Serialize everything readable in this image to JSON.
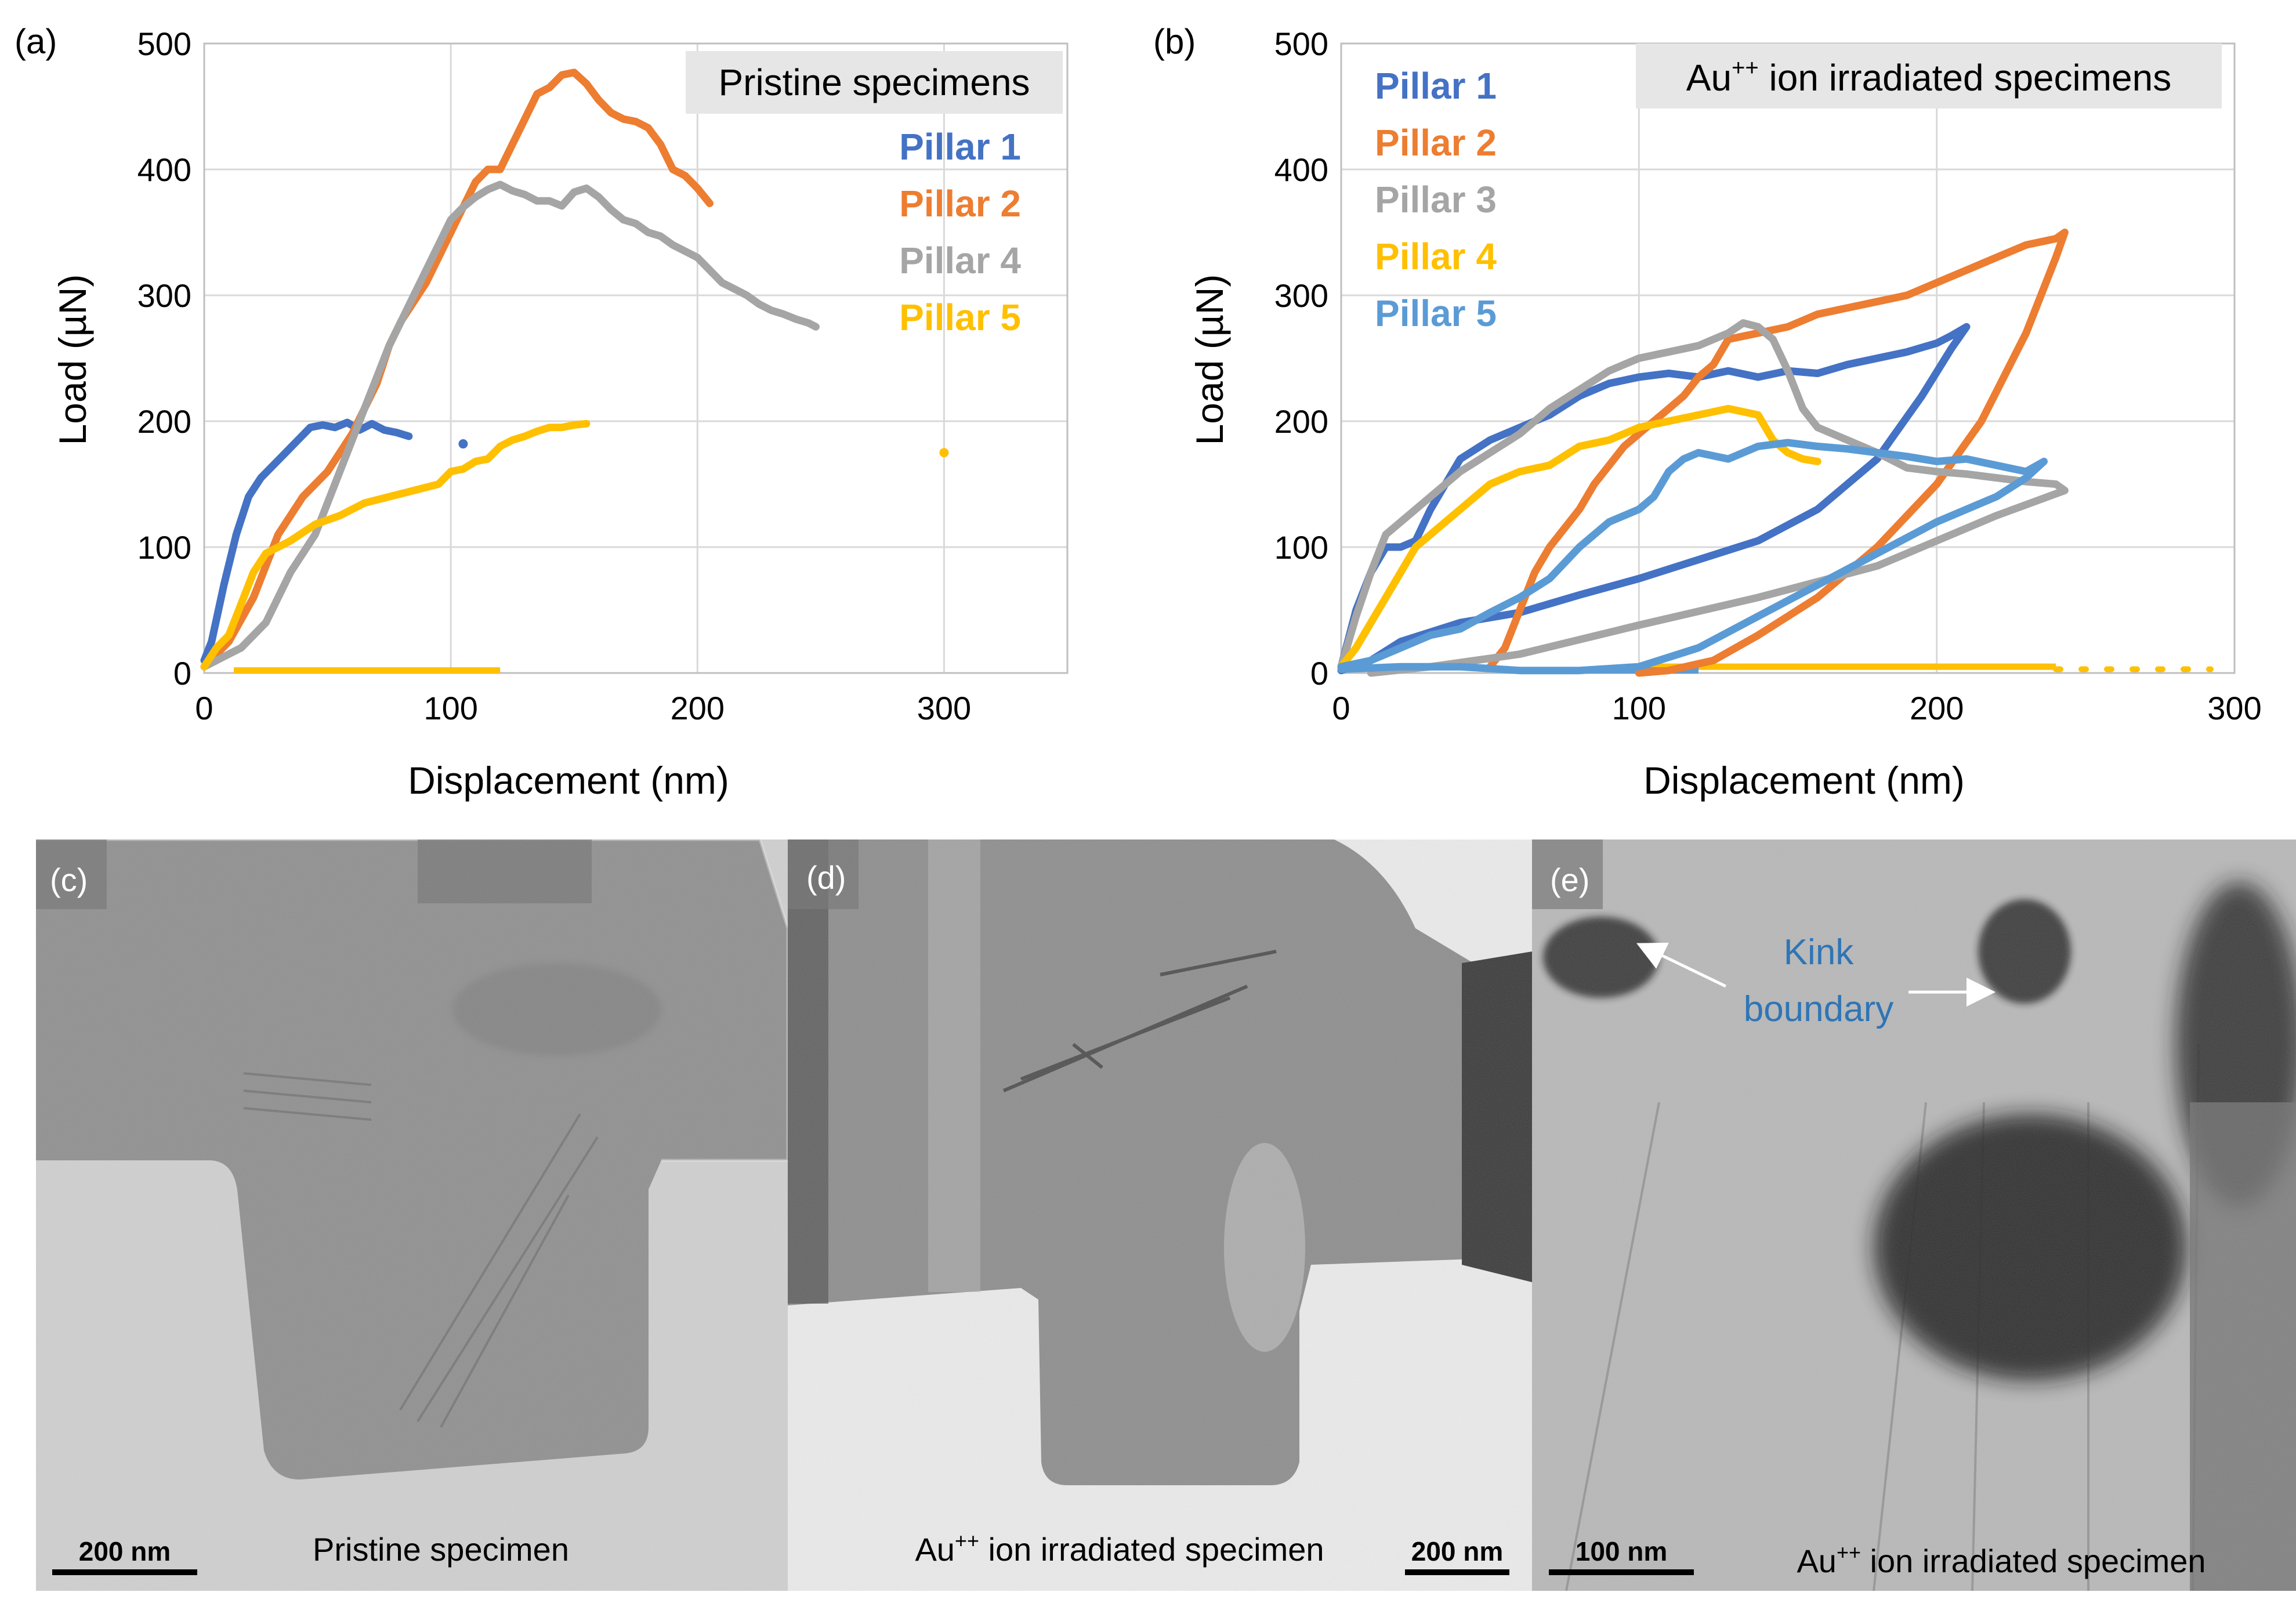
{
  "colors": {
    "pillar_1": "#4472c4",
    "pillar_2": "#ed7d31",
    "pillar_3": "#a5a5a5",
    "pillar_4_yellow": "#ffc000",
    "pillar_5_light": "#5b9bd5",
    "grid": "#d9d9d9",
    "legend_box": "#e7e6e6",
    "kink_label": "#2e75b6"
  },
  "chart_data": [
    {
      "panel": "(a)",
      "type": "line",
      "title": "Pristine specimens",
      "xlabel": "Displacement (nm)",
      "ylabel": "Load (µN)",
      "xlim": [
        0,
        350
      ],
      "ylim": [
        0,
        500
      ],
      "xticks": [
        0,
        100,
        200,
        300
      ],
      "yticks": [
        0,
        100,
        200,
        300,
        400,
        500
      ],
      "grid": "on",
      "legend_placement": "top-right",
      "series": [
        {
          "name": "Pillar 1",
          "color": "#4472c4",
          "x": [
            0,
            3,
            8,
            13,
            18,
            23,
            28,
            33,
            38,
            43,
            48,
            53,
            58,
            63,
            68,
            73,
            78,
            83
          ],
          "y": [
            10,
            25,
            70,
            110,
            140,
            155,
            165,
            175,
            185,
            195,
            197,
            195,
            199,
            193,
            198,
            193,
            191,
            188
          ]
        },
        {
          "name": "Pillar 2",
          "color": "#ed7d31",
          "x": [
            0,
            10,
            20,
            30,
            40,
            50,
            60,
            65,
            70,
            75,
            80,
            85,
            90,
            95,
            100,
            105,
            110,
            115,
            120,
            125,
            130,
            135,
            140,
            145,
            150,
            155,
            160,
            165,
            170,
            175,
            180,
            185,
            190,
            195,
            200,
            205
          ],
          "y": [
            5,
            25,
            60,
            110,
            140,
            160,
            190,
            210,
            230,
            260,
            280,
            295,
            310,
            330,
            350,
            370,
            390,
            400,
            400,
            420,
            440,
            460,
            465,
            475,
            477,
            468,
            455,
            445,
            440,
            438,
            433,
            420,
            400,
            395,
            385,
            373
          ]
        },
        {
          "name": "Pillar 4",
          "color": "#a5a5a5",
          "x": [
            0,
            15,
            25,
            35,
            45,
            55,
            65,
            75,
            85,
            95,
            100,
            105,
            110,
            115,
            120,
            125,
            130,
            135,
            140,
            145,
            150,
            155,
            160,
            165,
            170,
            175,
            180,
            185,
            190,
            195,
            200,
            205,
            210,
            215,
            220,
            225,
            230,
            235,
            240,
            245,
            248
          ],
          "y": [
            5,
            20,
            40,
            80,
            110,
            160,
            210,
            260,
            300,
            340,
            360,
            370,
            378,
            384,
            388,
            383,
            380,
            375,
            375,
            371,
            382,
            385,
            378,
            368,
            360,
            357,
            350,
            347,
            340,
            335,
            330,
            320,
            310,
            305,
            300,
            293,
            288,
            285,
            281,
            278,
            275
          ]
        },
        {
          "name": "Pillar 5",
          "color": "#ffc000",
          "x": [
            0,
            5,
            10,
            15,
            20,
            25,
            30,
            35,
            45,
            55,
            65,
            75,
            85,
            95,
            100,
            105,
            110,
            115,
            120,
            125,
            130,
            135,
            140,
            145,
            150,
            155
          ],
          "y": [
            5,
            20,
            30,
            55,
            80,
            95,
            100,
            105,
            118,
            125,
            135,
            140,
            145,
            150,
            160,
            162,
            168,
            170,
            180,
            185,
            188,
            192,
            195,
            195,
            197,
            198
          ]
        }
      ],
      "stray_points": [
        {
          "series": "Pillar 1",
          "x": 105,
          "y": 182
        },
        {
          "series": "Pillar 5",
          "x": 300,
          "y": 175
        }
      ],
      "baseline_segments": [
        {
          "series": "Pillar 5",
          "x0": 12,
          "x1": 120,
          "y": 2
        }
      ]
    },
    {
      "panel": "(b)",
      "type": "line",
      "title": "Au++ ion irradiated specimens",
      "title_base": "Au",
      "title_superscript": "++",
      "title_rest": " ion irradiated specimens",
      "xlabel": "Displacement (nm)",
      "ylabel": "Load (µN)",
      "xlim": [
        0,
        300
      ],
      "ylim": [
        0,
        500
      ],
      "xticks": [
        0,
        100,
        200,
        300
      ],
      "yticks": [
        0,
        100,
        200,
        300,
        400,
        500
      ],
      "grid": "on",
      "legend_placement": "top-left",
      "series": [
        {
          "name": "Pillar 1",
          "color": "#4472c4",
          "x": [
            0,
            5,
            10,
            15,
            20,
            25,
            30,
            35,
            40,
            50,
            60,
            70,
            80,
            90,
            100,
            110,
            120,
            130,
            140,
            150,
            160,
            170,
            180,
            190,
            200,
            205,
            210,
            205,
            195,
            180,
            160,
            140,
            120,
            100,
            80,
            60,
            40,
            20,
            10,
            0
          ],
          "y": [
            5,
            50,
            80,
            100,
            100,
            105,
            130,
            150,
            170,
            185,
            195,
            205,
            220,
            230,
            235,
            238,
            235,
            240,
            235,
            240,
            238,
            245,
            250,
            255,
            262,
            268,
            275,
            258,
            220,
            170,
            130,
            105,
            90,
            75,
            62,
            48,
            40,
            25,
            10,
            2
          ]
        },
        {
          "name": "Pillar 2",
          "color": "#ed7d31",
          "x": [
            50,
            55,
            60,
            65,
            70,
            75,
            80,
            85,
            90,
            95,
            100,
            105,
            110,
            115,
            120,
            125,
            130,
            140,
            150,
            160,
            170,
            180,
            190,
            200,
            210,
            220,
            230,
            240,
            243,
            240,
            230,
            215,
            200,
            180,
            160,
            140,
            125,
            110,
            100
          ],
          "y": [
            5,
            20,
            50,
            80,
            100,
            115,
            130,
            150,
            165,
            180,
            190,
            200,
            210,
            220,
            235,
            245,
            265,
            270,
            275,
            285,
            290,
            295,
            300,
            310,
            320,
            330,
            340,
            345,
            350,
            330,
            270,
            200,
            150,
            100,
            60,
            30,
            10,
            2,
            0
          ]
        },
        {
          "name": "Pillar 3",
          "color": "#a5a5a5",
          "x": [
            0,
            5,
            10,
            15,
            20,
            25,
            30,
            40,
            50,
            60,
            70,
            80,
            90,
            100,
            110,
            120,
            125,
            130,
            135,
            140,
            145,
            150,
            155,
            160,
            170,
            180,
            190,
            200,
            210,
            220,
            230,
            240,
            243,
            220,
            180,
            140,
            100,
            60,
            30,
            10
          ],
          "y": [
            5,
            45,
            80,
            110,
            120,
            130,
            140,
            160,
            175,
            190,
            210,
            225,
            240,
            250,
            255,
            260,
            265,
            270,
            278,
            275,
            265,
            240,
            210,
            195,
            185,
            175,
            163,
            160,
            158,
            155,
            152,
            150,
            145,
            125,
            85,
            60,
            38,
            15,
            5,
            0
          ]
        },
        {
          "name": "Pillar 4",
          "color": "#ffc000",
          "x": [
            0,
            5,
            10,
            15,
            20,
            25,
            30,
            40,
            50,
            60,
            70,
            80,
            90,
            100,
            110,
            120,
            130,
            140,
            145,
            150,
            155,
            160
          ],
          "y": [
            5,
            20,
            40,
            60,
            80,
            100,
            110,
            130,
            150,
            160,
            165,
            180,
            185,
            195,
            200,
            205,
            210,
            205,
            185,
            175,
            170,
            168
          ]
        },
        {
          "name": "Pillar 5",
          "color": "#5b9bd5",
          "x": [
            0,
            10,
            20,
            30,
            40,
            50,
            60,
            70,
            80,
            90,
            100,
            105,
            110,
            115,
            120,
            130,
            140,
            150,
            160,
            170,
            180,
            190,
            200,
            210,
            220,
            230,
            236,
            230,
            220,
            200,
            180,
            160,
            140,
            120,
            100,
            80,
            60,
            40,
            20,
            0
          ],
          "y": [
            5,
            10,
            20,
            30,
            35,
            48,
            60,
            75,
            100,
            120,
            130,
            140,
            160,
            170,
            175,
            170,
            180,
            183,
            180,
            178,
            175,
            172,
            168,
            170,
            165,
            160,
            168,
            155,
            140,
            120,
            95,
            70,
            45,
            20,
            5,
            2,
            2,
            5,
            5,
            3
          ]
        }
      ],
      "baseline_segments": [
        {
          "series": "Pillar 4",
          "x0": 100,
          "x1": 240,
          "y": 5
        },
        {
          "series": "Pillar 5",
          "x0": 60,
          "x1": 120,
          "y": 2
        }
      ],
      "dotted_tail": {
        "series": "Pillar 4",
        "x0": 240,
        "x1": 292,
        "y": 3
      }
    }
  ],
  "panel_labels": {
    "a": "(a)",
    "b": "(b)",
    "c": "(c)",
    "d": "(d)",
    "e": "(e)"
  },
  "images": {
    "c": {
      "label": "(c)",
      "caption": "Pristine specimen",
      "scale_bar": "200 nm"
    },
    "d": {
      "label": "(d)",
      "caption_base": "Au",
      "caption_sup": "++",
      "caption_rest": " ion irradiated specimen",
      "scale_bar": "200 nm"
    },
    "e": {
      "label": "(e)",
      "caption_base": "Au",
      "caption_sup": "++",
      "caption_rest": " ion irradiated specimen",
      "scale_bar": "100 nm",
      "annotation_line1": "Kink",
      "annotation_line2": "boundary"
    }
  }
}
